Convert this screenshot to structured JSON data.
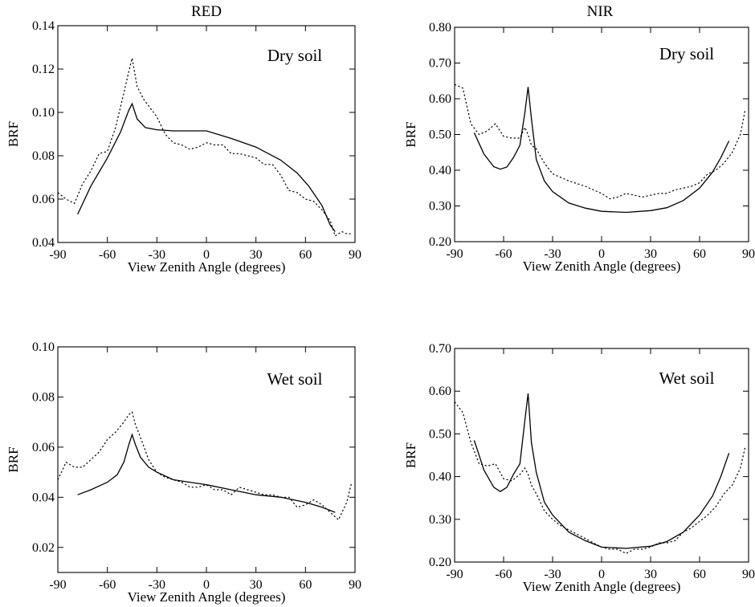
{
  "chart_data": [
    {
      "type": "line",
      "title": "RED",
      "annotation": "Dry soil",
      "xlabel": "View Zenith Angle (degrees)",
      "ylabel": "BRF",
      "xlim": [
        -90,
        90
      ],
      "ylim": [
        0.04,
        0.14
      ],
      "xticks": [
        "-90",
        "-60",
        "-30",
        "0",
        "30",
        "60",
        "90"
      ],
      "yticks": [
        "0.04",
        "0.06",
        "0.08",
        "0.10",
        "0.12",
        "0.14"
      ],
      "grid": false,
      "series": [
        {
          "style": "solid",
          "x": [
            -78,
            -70,
            -60,
            -52,
            -47,
            -45,
            -42,
            -37,
            -30,
            -20,
            -10,
            0,
            15,
            30,
            45,
            55,
            62,
            70,
            75,
            78
          ],
          "y": [
            0.053,
            0.066,
            0.079,
            0.091,
            0.101,
            0.104,
            0.097,
            0.093,
            0.092,
            0.0915,
            0.0915,
            0.0915,
            0.088,
            0.084,
            0.078,
            0.072,
            0.066,
            0.057,
            0.048,
            0.045
          ]
        },
        {
          "style": "dotted",
          "x": [
            -90,
            -85,
            -80,
            -75,
            -70,
            -65,
            -60,
            -55,
            -50,
            -47,
            -45,
            -42,
            -38,
            -33,
            -30,
            -25,
            -20,
            -15,
            -10,
            -5,
            0,
            5,
            10,
            15,
            20,
            25,
            30,
            35,
            40,
            45,
            50,
            55,
            60,
            65,
            70,
            75,
            78,
            82,
            85,
            88
          ],
          "y": [
            0.063,
            0.06,
            0.058,
            0.067,
            0.073,
            0.081,
            0.082,
            0.093,
            0.109,
            0.119,
            0.125,
            0.112,
            0.106,
            0.101,
            0.098,
            0.09,
            0.086,
            0.085,
            0.083,
            0.084,
            0.086,
            0.085,
            0.085,
            0.081,
            0.081,
            0.08,
            0.079,
            0.076,
            0.076,
            0.071,
            0.064,
            0.063,
            0.06,
            0.059,
            0.055,
            0.05,
            0.043,
            0.045,
            0.044,
            0.044
          ]
        }
      ]
    },
    {
      "type": "line",
      "title": "NIR",
      "annotation": "Dry soil",
      "xlabel": "View Zenith Angle (degrees)",
      "ylabel": "BRF",
      "xlim": [
        -90,
        90
      ],
      "ylim": [
        0.2,
        0.8
      ],
      "xticks": [
        "-90",
        "-60",
        "-30",
        "0",
        "30",
        "60",
        "90"
      ],
      "yticks": [
        "0.20",
        "0.30",
        "0.40",
        "0.50",
        "0.60",
        "0.70",
        "0.80"
      ],
      "grid": false,
      "series": [
        {
          "style": "solid",
          "x": [
            -78,
            -72,
            -66,
            -62,
            -58,
            -54,
            -50,
            -47,
            -45,
            -43,
            -40,
            -35,
            -30,
            -20,
            -10,
            0,
            15,
            30,
            40,
            50,
            60,
            68,
            73,
            78
          ],
          "y": [
            0.505,
            0.445,
            0.41,
            0.403,
            0.409,
            0.435,
            0.47,
            0.56,
            0.633,
            0.545,
            0.43,
            0.37,
            0.34,
            0.308,
            0.294,
            0.285,
            0.282,
            0.287,
            0.295,
            0.315,
            0.35,
            0.395,
            0.435,
            0.482
          ]
        },
        {
          "style": "dotted",
          "x": [
            -90,
            -85,
            -80,
            -75,
            -70,
            -65,
            -60,
            -55,
            -50,
            -47,
            -45,
            -43,
            -40,
            -35,
            -30,
            -20,
            -10,
            -5,
            0,
            5,
            10,
            15,
            20,
            25,
            30,
            35,
            40,
            45,
            50,
            55,
            60,
            65,
            70,
            75,
            80,
            85,
            88
          ],
          "y": [
            0.64,
            0.63,
            0.53,
            0.5,
            0.51,
            0.53,
            0.495,
            0.49,
            0.49,
            0.52,
            0.5,
            0.47,
            0.46,
            0.42,
            0.39,
            0.37,
            0.355,
            0.345,
            0.335,
            0.32,
            0.325,
            0.335,
            0.33,
            0.325,
            0.33,
            0.335,
            0.335,
            0.345,
            0.35,
            0.355,
            0.365,
            0.39,
            0.4,
            0.42,
            0.45,
            0.5,
            0.57
          ]
        }
      ]
    },
    {
      "type": "line",
      "title": "",
      "annotation": "Wet soil",
      "xlabel": "View Zenith Angle (degrees)",
      "ylabel": "BRF",
      "xlim": [
        -90,
        90
      ],
      "ylim": [
        0.01,
        0.1
      ],
      "xticks": [
        "-90",
        "-60",
        "-30",
        "0",
        "30",
        "60",
        "90"
      ],
      "yticks": [
        "0.02",
        "0.04",
        "0.06",
        "0.08",
        "0.10"
      ],
      "grid": false,
      "series": [
        {
          "style": "solid",
          "x": [
            -78,
            -70,
            -60,
            -54,
            -50,
            -47,
            -45,
            -43,
            -40,
            -35,
            -30,
            -20,
            -10,
            0,
            15,
            30,
            45,
            60,
            70,
            78
          ],
          "y": [
            0.041,
            0.043,
            0.046,
            0.049,
            0.054,
            0.061,
            0.065,
            0.061,
            0.056,
            0.052,
            0.05,
            0.047,
            0.046,
            0.045,
            0.043,
            0.041,
            0.04,
            0.038,
            0.036,
            0.034
          ]
        },
        {
          "style": "dotted",
          "x": [
            -90,
            -85,
            -80,
            -75,
            -70,
            -65,
            -60,
            -55,
            -50,
            -47,
            -45,
            -43,
            -40,
            -35,
            -30,
            -25,
            -20,
            -15,
            -10,
            -5,
            0,
            5,
            10,
            15,
            20,
            25,
            30,
            35,
            40,
            45,
            50,
            55,
            60,
            65,
            70,
            75,
            80,
            85,
            88
          ],
          "y": [
            0.047,
            0.054,
            0.052,
            0.052,
            0.055,
            0.058,
            0.063,
            0.066,
            0.07,
            0.073,
            0.074,
            0.069,
            0.064,
            0.055,
            0.05,
            0.048,
            0.047,
            0.046,
            0.044,
            0.044,
            0.045,
            0.043,
            0.043,
            0.041,
            0.044,
            0.043,
            0.042,
            0.041,
            0.041,
            0.04,
            0.04,
            0.036,
            0.037,
            0.039,
            0.037,
            0.034,
            0.031,
            0.038,
            0.046
          ]
        }
      ]
    },
    {
      "type": "line",
      "title": "",
      "annotation": "Wet soil",
      "xlabel": "View Zenith Angle (degrees)",
      "ylabel": "BRF",
      "xlim": [
        -90,
        90
      ],
      "ylim": [
        0.2,
        0.7
      ],
      "xticks": [
        "-90",
        "-60",
        "-30",
        "0",
        "30",
        "60",
        "90"
      ],
      "yticks": [
        "0.20",
        "0.30",
        "0.40",
        "0.50",
        "0.60",
        "0.70"
      ],
      "grid": false,
      "series": [
        {
          "style": "solid",
          "x": [
            -78,
            -72,
            -66,
            -62,
            -58,
            -54,
            -50,
            -47,
            -45,
            -43,
            -40,
            -35,
            -30,
            -20,
            -10,
            0,
            15,
            30,
            40,
            50,
            60,
            68,
            73,
            78
          ],
          "y": [
            0.485,
            0.415,
            0.375,
            0.365,
            0.375,
            0.405,
            0.43,
            0.53,
            0.595,
            0.48,
            0.41,
            0.34,
            0.31,
            0.27,
            0.25,
            0.235,
            0.232,
            0.237,
            0.248,
            0.27,
            0.31,
            0.355,
            0.4,
            0.455
          ]
        },
        {
          "style": "dotted",
          "x": [
            -90,
            -85,
            -80,
            -75,
            -70,
            -65,
            -60,
            -55,
            -50,
            -47,
            -45,
            -43,
            -40,
            -35,
            -30,
            -25,
            -20,
            -15,
            -10,
            -5,
            0,
            5,
            10,
            15,
            20,
            25,
            30,
            35,
            40,
            45,
            50,
            55,
            60,
            65,
            70,
            75,
            80,
            85,
            88
          ],
          "y": [
            0.575,
            0.55,
            0.48,
            0.43,
            0.425,
            0.43,
            0.395,
            0.39,
            0.405,
            0.42,
            0.405,
            0.38,
            0.36,
            0.32,
            0.3,
            0.285,
            0.275,
            0.265,
            0.255,
            0.245,
            0.235,
            0.23,
            0.23,
            0.22,
            0.23,
            0.23,
            0.235,
            0.245,
            0.245,
            0.25,
            0.27,
            0.28,
            0.295,
            0.31,
            0.33,
            0.36,
            0.38,
            0.42,
            0.47
          ]
        }
      ]
    }
  ]
}
